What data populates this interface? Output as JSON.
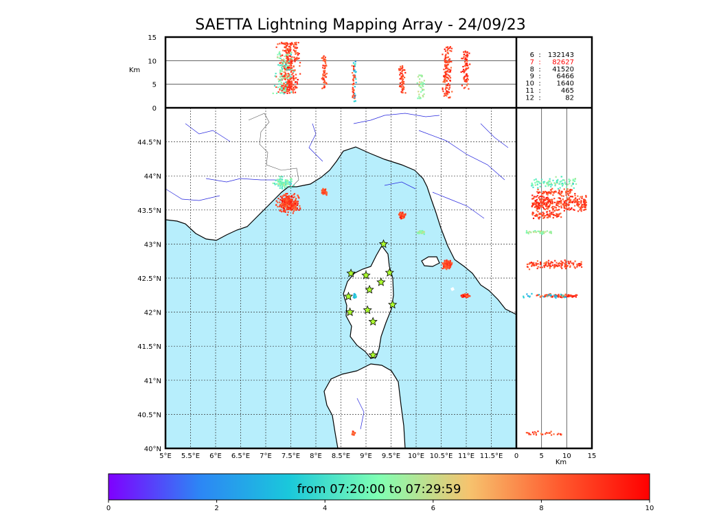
{
  "title": "SAETTA Lightning Mapping Array - 24/09/23",
  "colors": {
    "sea": "#b7eefc",
    "land": "#ffffff",
    "coast": "#000000",
    "rivers": "#2222dd",
    "station": "#adff2f",
    "highlight": "#ff0000"
  },
  "chart_data": {
    "type": "scatter",
    "map": {
      "lon_range": [
        5,
        12
      ],
      "lat_range": [
        40,
        45
      ],
      "lon_ticks": [
        "5°E",
        "5.5°E",
        "6°E",
        "6.5°E",
        "7°E",
        "7.5°E",
        "8°E",
        "8.5°E",
        "9°E",
        "9.5°E",
        "10°E",
        "10.5°E",
        "11°E",
        "11.5°E"
      ],
      "lat_ticks": [
        "40°N",
        "40.5°N",
        "41°N",
        "41.5°N",
        "42°N",
        "42.5°N",
        "43°N",
        "43.5°N",
        "44°N",
        "44.5°N"
      ],
      "grid": true
    },
    "altitude_axis": {
      "label": "Km",
      "range": [
        0,
        15
      ],
      "ticks": [
        "0",
        "5",
        "10",
        "15"
      ]
    },
    "stations": [
      {
        "lon": 9.35,
        "lat": 43.0
      },
      {
        "lon": 8.7,
        "lat": 42.57
      },
      {
        "lon": 9.0,
        "lat": 42.54
      },
      {
        "lon": 9.47,
        "lat": 42.58
      },
      {
        "lon": 9.3,
        "lat": 42.44
      },
      {
        "lon": 9.07,
        "lat": 42.33
      },
      {
        "lon": 8.65,
        "lat": 42.23
      },
      {
        "lon": 9.53,
        "lat": 42.11
      },
      {
        "lon": 8.68,
        "lat": 42.0
      },
      {
        "lon": 9.03,
        "lat": 42.03
      },
      {
        "lon": 9.14,
        "lat": 41.86
      },
      {
        "lon": 9.14,
        "lat": 41.37
      }
    ],
    "clusters": [
      {
        "lon": 7.45,
        "lat": 43.6,
        "dlon": 0.28,
        "dlat": 0.18,
        "alt": [
          3,
          14
        ],
        "t": 8.8,
        "n": 320
      },
      {
        "lon": 7.35,
        "lat": 43.9,
        "dlon": 0.25,
        "dlat": 0.12,
        "alt": [
          3,
          12
        ],
        "t": 4.8,
        "n": 90
      },
      {
        "lon": 8.17,
        "lat": 43.77,
        "dlon": 0.07,
        "dlat": 0.06,
        "alt": [
          4,
          11
        ],
        "t": 8.6,
        "n": 60
      },
      {
        "lon": 9.72,
        "lat": 43.42,
        "dlon": 0.08,
        "dlat": 0.06,
        "alt": [
          3,
          9
        ],
        "t": 8.8,
        "n": 60
      },
      {
        "lon": 10.1,
        "lat": 43.18,
        "dlon": 0.1,
        "dlat": 0.04,
        "alt": [
          2,
          7
        ],
        "t": 5.5,
        "n": 40
      },
      {
        "lon": 10.62,
        "lat": 42.7,
        "dlon": 0.12,
        "dlat": 0.08,
        "alt": [
          2,
          13
        ],
        "t": 8.8,
        "n": 130
      },
      {
        "lon": 10.99,
        "lat": 42.24,
        "dlon": 0.1,
        "dlat": 0.03,
        "alt": [
          4,
          12
        ],
        "t": 8.9,
        "n": 80
      },
      {
        "lon": 8.78,
        "lat": 42.24,
        "dlon": 0.04,
        "dlat": 0.04,
        "alt": [
          1,
          10
        ],
        "t": 3.2,
        "n": 25
      },
      {
        "lon": 8.75,
        "lat": 40.22,
        "dlon": 0.05,
        "dlat": 0.05,
        "alt": [
          2,
          9
        ],
        "t": 8.5,
        "n": 30
      }
    ],
    "color_scale": {
      "range": [
        0,
        10
      ],
      "ticks": [
        "0",
        "2",
        "4",
        "6",
        "8",
        "10"
      ],
      "caption": "from 07:20:00 to 07:29:59",
      "stops": [
        "#7f00ff",
        "#2d85f5",
        "#1ac8db",
        "#80ffb3",
        "#f6c36e",
        "#ff5a2e",
        "#ff0000"
      ]
    }
  },
  "legend": {
    "highlight_index": 1,
    "rows": [
      {
        "level": "6",
        "sep": ":",
        "count": "132143"
      },
      {
        "level": "7",
        "sep": ":",
        "count": "82627"
      },
      {
        "level": "8",
        "sep": ":",
        "count": "41520"
      },
      {
        "level": "9",
        "sep": ":",
        "count": "6466"
      },
      {
        "level": "10",
        "sep": ":",
        "count": "1640"
      },
      {
        "level": "11",
        "sep": ":",
        "count": "465"
      },
      {
        "level": "12",
        "sep": ":",
        "count": "82"
      }
    ]
  }
}
